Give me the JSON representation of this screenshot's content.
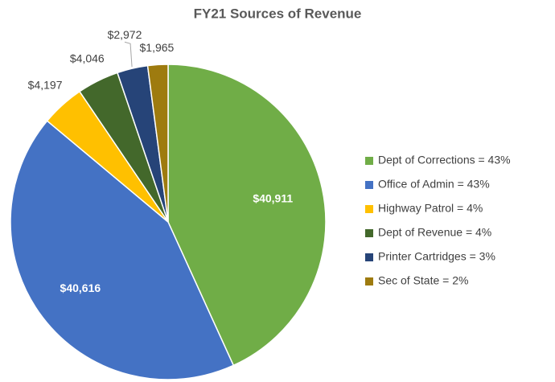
{
  "chart_data": {
    "type": "pie",
    "title": "FY21 Sources of Revenue",
    "categories": [
      "Dept of Corrections = 43%",
      "Office of Admin = 43%",
      "Highway Patrol = 4%",
      "Dept of Revenue = 4%",
      "Printer Cartridges = 3%",
      "Sec of State = 2%"
    ],
    "values": [
      40911,
      40616,
      4197,
      4046,
      2972,
      1965
    ],
    "value_labels": [
      "$40,911",
      "$40,616",
      "$4,197",
      "$4,046",
      "$2,972",
      "$1,965"
    ],
    "colors": [
      "#70ad47",
      "#4472c4",
      "#ffc000",
      "#43682b",
      "#264478",
      "#9e7b0f"
    ],
    "legend": "right"
  }
}
